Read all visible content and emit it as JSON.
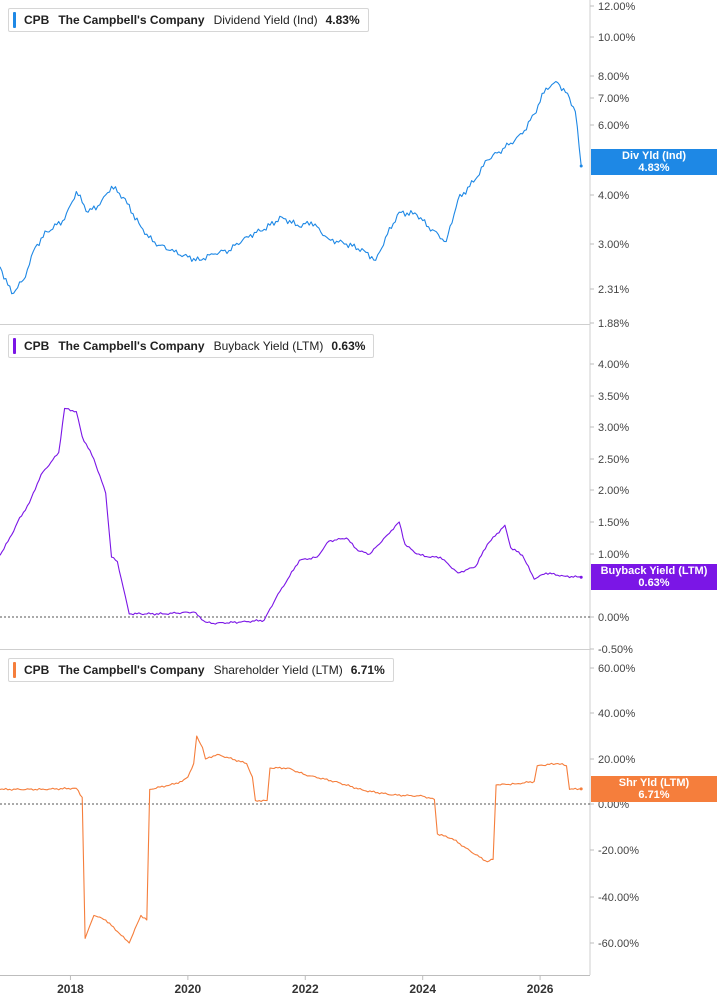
{
  "panels": [
    {
      "ticker": "CPB",
      "company": "The Campbell's Company",
      "metric": "Dividend Yield (Ind)",
      "value": "4.83%",
      "tag_label": "Div Yld (Ind)",
      "tag_value": "4.83%",
      "color": "#1e88e5"
    },
    {
      "ticker": "CPB",
      "company": "The Campbell's Company",
      "metric": "Buyback Yield (LTM)",
      "value": "0.63%",
      "tag_label": "Buyback Yield (LTM)",
      "tag_value": "0.63%",
      "color": "#7b16e6"
    },
    {
      "ticker": "CPB",
      "company": "The Campbell's Company",
      "metric": "Shareholder Yield (LTM)",
      "value": "6.71%",
      "tag_label": "Shr Yld (LTM)",
      "tag_value": "6.71%",
      "color": "#f57e3c"
    }
  ],
  "x_axis": {
    "ticks": [
      "2018",
      "2020",
      "2022",
      "2024",
      "2026"
    ]
  },
  "chart_data": [
    {
      "type": "line",
      "scale": "log",
      "ylim": [
        1.88,
        12.0
      ],
      "yticks": [
        "12.00%",
        "10.00%",
        "8.00%",
        "7.00%",
        "6.00%",
        "4.00%",
        "3.00%",
        "2.31%",
        "1.88%"
      ],
      "ytick_values": [
        12,
        10,
        8,
        7,
        6,
        4,
        3,
        2.31,
        1.88
      ],
      "series": [
        {
          "name": "Dividend Yield (Ind)",
          "x": [
            2016.8,
            2017.0,
            2017.2,
            2017.4,
            2017.6,
            2017.9,
            2018.1,
            2018.3,
            2018.5,
            2018.7,
            2018.9,
            2019.2,
            2019.4,
            2019.7,
            2020.0,
            2020.2,
            2020.4,
            2020.7,
            2021.0,
            2021.3,
            2021.6,
            2021.9,
            2022.1,
            2022.4,
            2022.7,
            2023.0,
            2023.2,
            2023.4,
            2023.6,
            2023.9,
            2024.1,
            2024.4,
            2024.6,
            2024.9,
            2025.1,
            2025.4,
            2025.7,
            2025.9,
            2026.1,
            2026.3,
            2026.5,
            2026.6,
            2026.7
          ],
          "y": [
            2.65,
            2.25,
            2.45,
            2.95,
            3.25,
            3.5,
            4.1,
            3.65,
            3.8,
            4.25,
            3.95,
            3.35,
            3.05,
            2.9,
            2.8,
            2.75,
            2.85,
            2.9,
            3.15,
            3.3,
            3.55,
            3.35,
            3.45,
            3.1,
            3.0,
            2.9,
            2.75,
            3.2,
            3.65,
            3.6,
            3.35,
            3.05,
            3.9,
            4.45,
            5.0,
            5.35,
            5.75,
            6.4,
            7.45,
            7.7,
            7.0,
            6.5,
            4.83
          ]
        }
      ]
    },
    {
      "type": "line",
      "ylim": [
        -0.5,
        4.5
      ],
      "yticks": [
        "4.00%",
        "3.50%",
        "3.00%",
        "2.50%",
        "2.00%",
        "1.50%",
        "1.00%",
        "0.00%",
        "-0.50%"
      ],
      "ytick_values": [
        4.0,
        3.5,
        3.0,
        2.5,
        2.0,
        1.5,
        1.0,
        0.0,
        -0.5
      ],
      "zero_line": 0,
      "series": [
        {
          "name": "Buyback Yield (LTM)",
          "x": [
            2016.8,
            2017.0,
            2017.1,
            2017.3,
            2017.5,
            2017.8,
            2017.9,
            2018.1,
            2018.2,
            2018.4,
            2018.6,
            2018.7,
            2018.8,
            2019.0,
            2019.2,
            2019.6,
            2019.8,
            2020.1,
            2020.3,
            2020.4,
            2020.9,
            2021.3,
            2021.5,
            2021.7,
            2021.9,
            2022.2,
            2022.4,
            2022.7,
            2022.9,
            2023.1,
            2023.4,
            2023.6,
            2023.7,
            2023.9,
            2024.1,
            2024.3,
            2024.6,
            2024.9,
            2025.1,
            2025.4,
            2025.5,
            2025.7,
            2025.9,
            2026.1,
            2026.4,
            2026.7
          ],
          "y": [
            0.98,
            1.3,
            1.5,
            1.8,
            2.25,
            2.6,
            3.3,
            3.25,
            2.85,
            2.5,
            1.95,
            0.95,
            0.88,
            0.05,
            0.05,
            0.05,
            0.06,
            0.08,
            -0.08,
            -0.1,
            -0.08,
            -0.05,
            0.3,
            0.6,
            0.9,
            0.95,
            1.2,
            1.25,
            1.05,
            1.0,
            1.3,
            1.5,
            1.15,
            1.0,
            0.95,
            0.95,
            0.7,
            0.8,
            1.15,
            1.45,
            1.1,
            0.98,
            0.6,
            0.7,
            0.65,
            0.63
          ]
        }
      ]
    },
    {
      "type": "line",
      "ylim": [
        -70,
        60
      ],
      "yticks": [
        "60.00%",
        "40.00%",
        "20.00%",
        "0.00%",
        "-20.00%",
        "-40.00%",
        "-60.00%"
      ],
      "ytick_values": [
        60,
        40,
        20,
        0,
        -20,
        -40,
        -60
      ],
      "zero_line": 0,
      "series": [
        {
          "name": "Shareholder Yield (LTM)",
          "x": [
            2016.8,
            2017.5,
            2018.1,
            2018.2,
            2018.25,
            2018.4,
            2018.6,
            2018.8,
            2019.0,
            2019.2,
            2019.3,
            2019.35,
            2019.7,
            2019.9,
            2020.0,
            2020.1,
            2020.15,
            2020.25,
            2020.3,
            2020.5,
            2021.0,
            2021.1,
            2021.15,
            2021.35,
            2021.4,
            2021.7,
            2022.0,
            2022.5,
            2023.0,
            2023.5,
            2024.0,
            2024.2,
            2024.25,
            2024.5,
            2024.9,
            2025.1,
            2025.2,
            2025.25,
            2025.6,
            2025.9,
            2025.95,
            2026.3,
            2026.45,
            2026.5,
            2026.7
          ],
          "y": [
            6.5,
            6.5,
            7.0,
            3.0,
            -58,
            -48,
            -50,
            -55,
            -60,
            -48,
            -50,
            6.5,
            8.5,
            10.0,
            12.0,
            18.0,
            30.0,
            25.0,
            20.0,
            22.0,
            18.0,
            12.0,
            1.5,
            1.5,
            16.0,
            16.0,
            13.0,
            10.0,
            6.0,
            4.0,
            3.5,
            2.0,
            -13.0,
            -15.0,
            -22.0,
            -25.0,
            -24.0,
            8.5,
            9.0,
            10.0,
            17.0,
            18.0,
            17.0,
            6.5,
            6.71
          ]
        }
      ]
    }
  ]
}
